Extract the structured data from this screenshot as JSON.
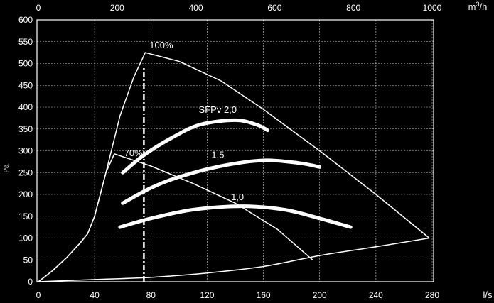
{
  "chart_data": {
    "type": "line",
    "grid": true,
    "x_bottom": {
      "unit": "l/s",
      "ticks": [
        0,
        40,
        80,
        120,
        160,
        200,
        240,
        280
      ],
      "range": [
        0,
        280
      ]
    },
    "x_top": {
      "unit": "m³/h",
      "unit_base": "m",
      "unit_sup": "3",
      "unit_tail": "/h",
      "ticks": [
        0,
        200,
        400,
        600,
        800,
        1000
      ],
      "range": [
        0,
        1000
      ]
    },
    "y": {
      "label": "Pa",
      "ticks": [
        0,
        50,
        100,
        150,
        200,
        250,
        300,
        350,
        400,
        450,
        500,
        550,
        600
      ],
      "range": [
        0,
        600
      ]
    },
    "series": [
      {
        "name": "100%",
        "style": "thin",
        "points": [
          [
            0,
            0
          ],
          [
            10,
            25
          ],
          [
            20,
            55
          ],
          [
            30,
            90
          ],
          [
            35,
            110
          ],
          [
            40,
            150
          ],
          [
            48,
            250
          ],
          [
            58,
            380
          ],
          [
            68,
            470
          ],
          [
            76,
            525
          ],
          [
            100,
            505
          ],
          [
            130,
            460
          ],
          [
            160,
            395
          ],
          [
            200,
            300
          ],
          [
            240,
            200
          ],
          [
            278,
            100
          ]
        ]
      },
      {
        "name": "70%",
        "style": "thin",
        "points": [
          [
            0,
            0
          ],
          [
            10,
            25
          ],
          [
            20,
            55
          ],
          [
            30,
            90
          ],
          [
            35,
            110
          ],
          [
            40,
            150
          ],
          [
            48,
            250
          ],
          [
            54,
            293
          ],
          [
            80,
            265
          ],
          [
            110,
            225
          ],
          [
            140,
            180
          ],
          [
            170,
            120
          ],
          [
            195,
            50
          ]
        ]
      },
      {
        "name": "",
        "style": "thin",
        "points": [
          [
            0,
            0
          ],
          [
            40,
            5
          ],
          [
            80,
            10
          ],
          [
            120,
            20
          ],
          [
            160,
            35
          ],
          [
            200,
            60
          ],
          [
            240,
            80
          ],
          [
            278,
            100
          ]
        ]
      },
      {
        "name": "SFPv 2,0",
        "style": "thick",
        "points": [
          [
            60,
            250
          ],
          [
            75,
            290
          ],
          [
            95,
            330
          ],
          [
            115,
            360
          ],
          [
            140,
            370
          ],
          [
            155,
            360
          ],
          [
            163,
            347
          ]
        ]
      },
      {
        "name": "1,5",
        "style": "thick",
        "points": [
          [
            60,
            180
          ],
          [
            80,
            215
          ],
          [
            100,
            240
          ],
          [
            130,
            265
          ],
          [
            160,
            278
          ],
          [
            185,
            272
          ],
          [
            200,
            263
          ]
        ]
      },
      {
        "name": "1,0",
        "style": "thick",
        "points": [
          [
            58,
            125
          ],
          [
            80,
            145
          ],
          [
            110,
            165
          ],
          [
            145,
            173
          ],
          [
            175,
            165
          ],
          [
            200,
            145
          ],
          [
            222,
            125
          ]
        ]
      },
      {
        "name": "",
        "style": "dashdot",
        "points": [
          [
            75,
            0
          ],
          [
            75,
            490
          ]
        ]
      }
    ],
    "labels": [
      {
        "text": "100%",
        "x": 79,
        "y": 535
      },
      {
        "text": "70%",
        "x": 61,
        "y": 288
      },
      {
        "text": "SFPv 2,0",
        "x": 114,
        "y": 387
      },
      {
        "text": "1,5",
        "x": 123,
        "y": 284
      },
      {
        "text": "1,0",
        "x": 137,
        "y": 187
      }
    ]
  }
}
